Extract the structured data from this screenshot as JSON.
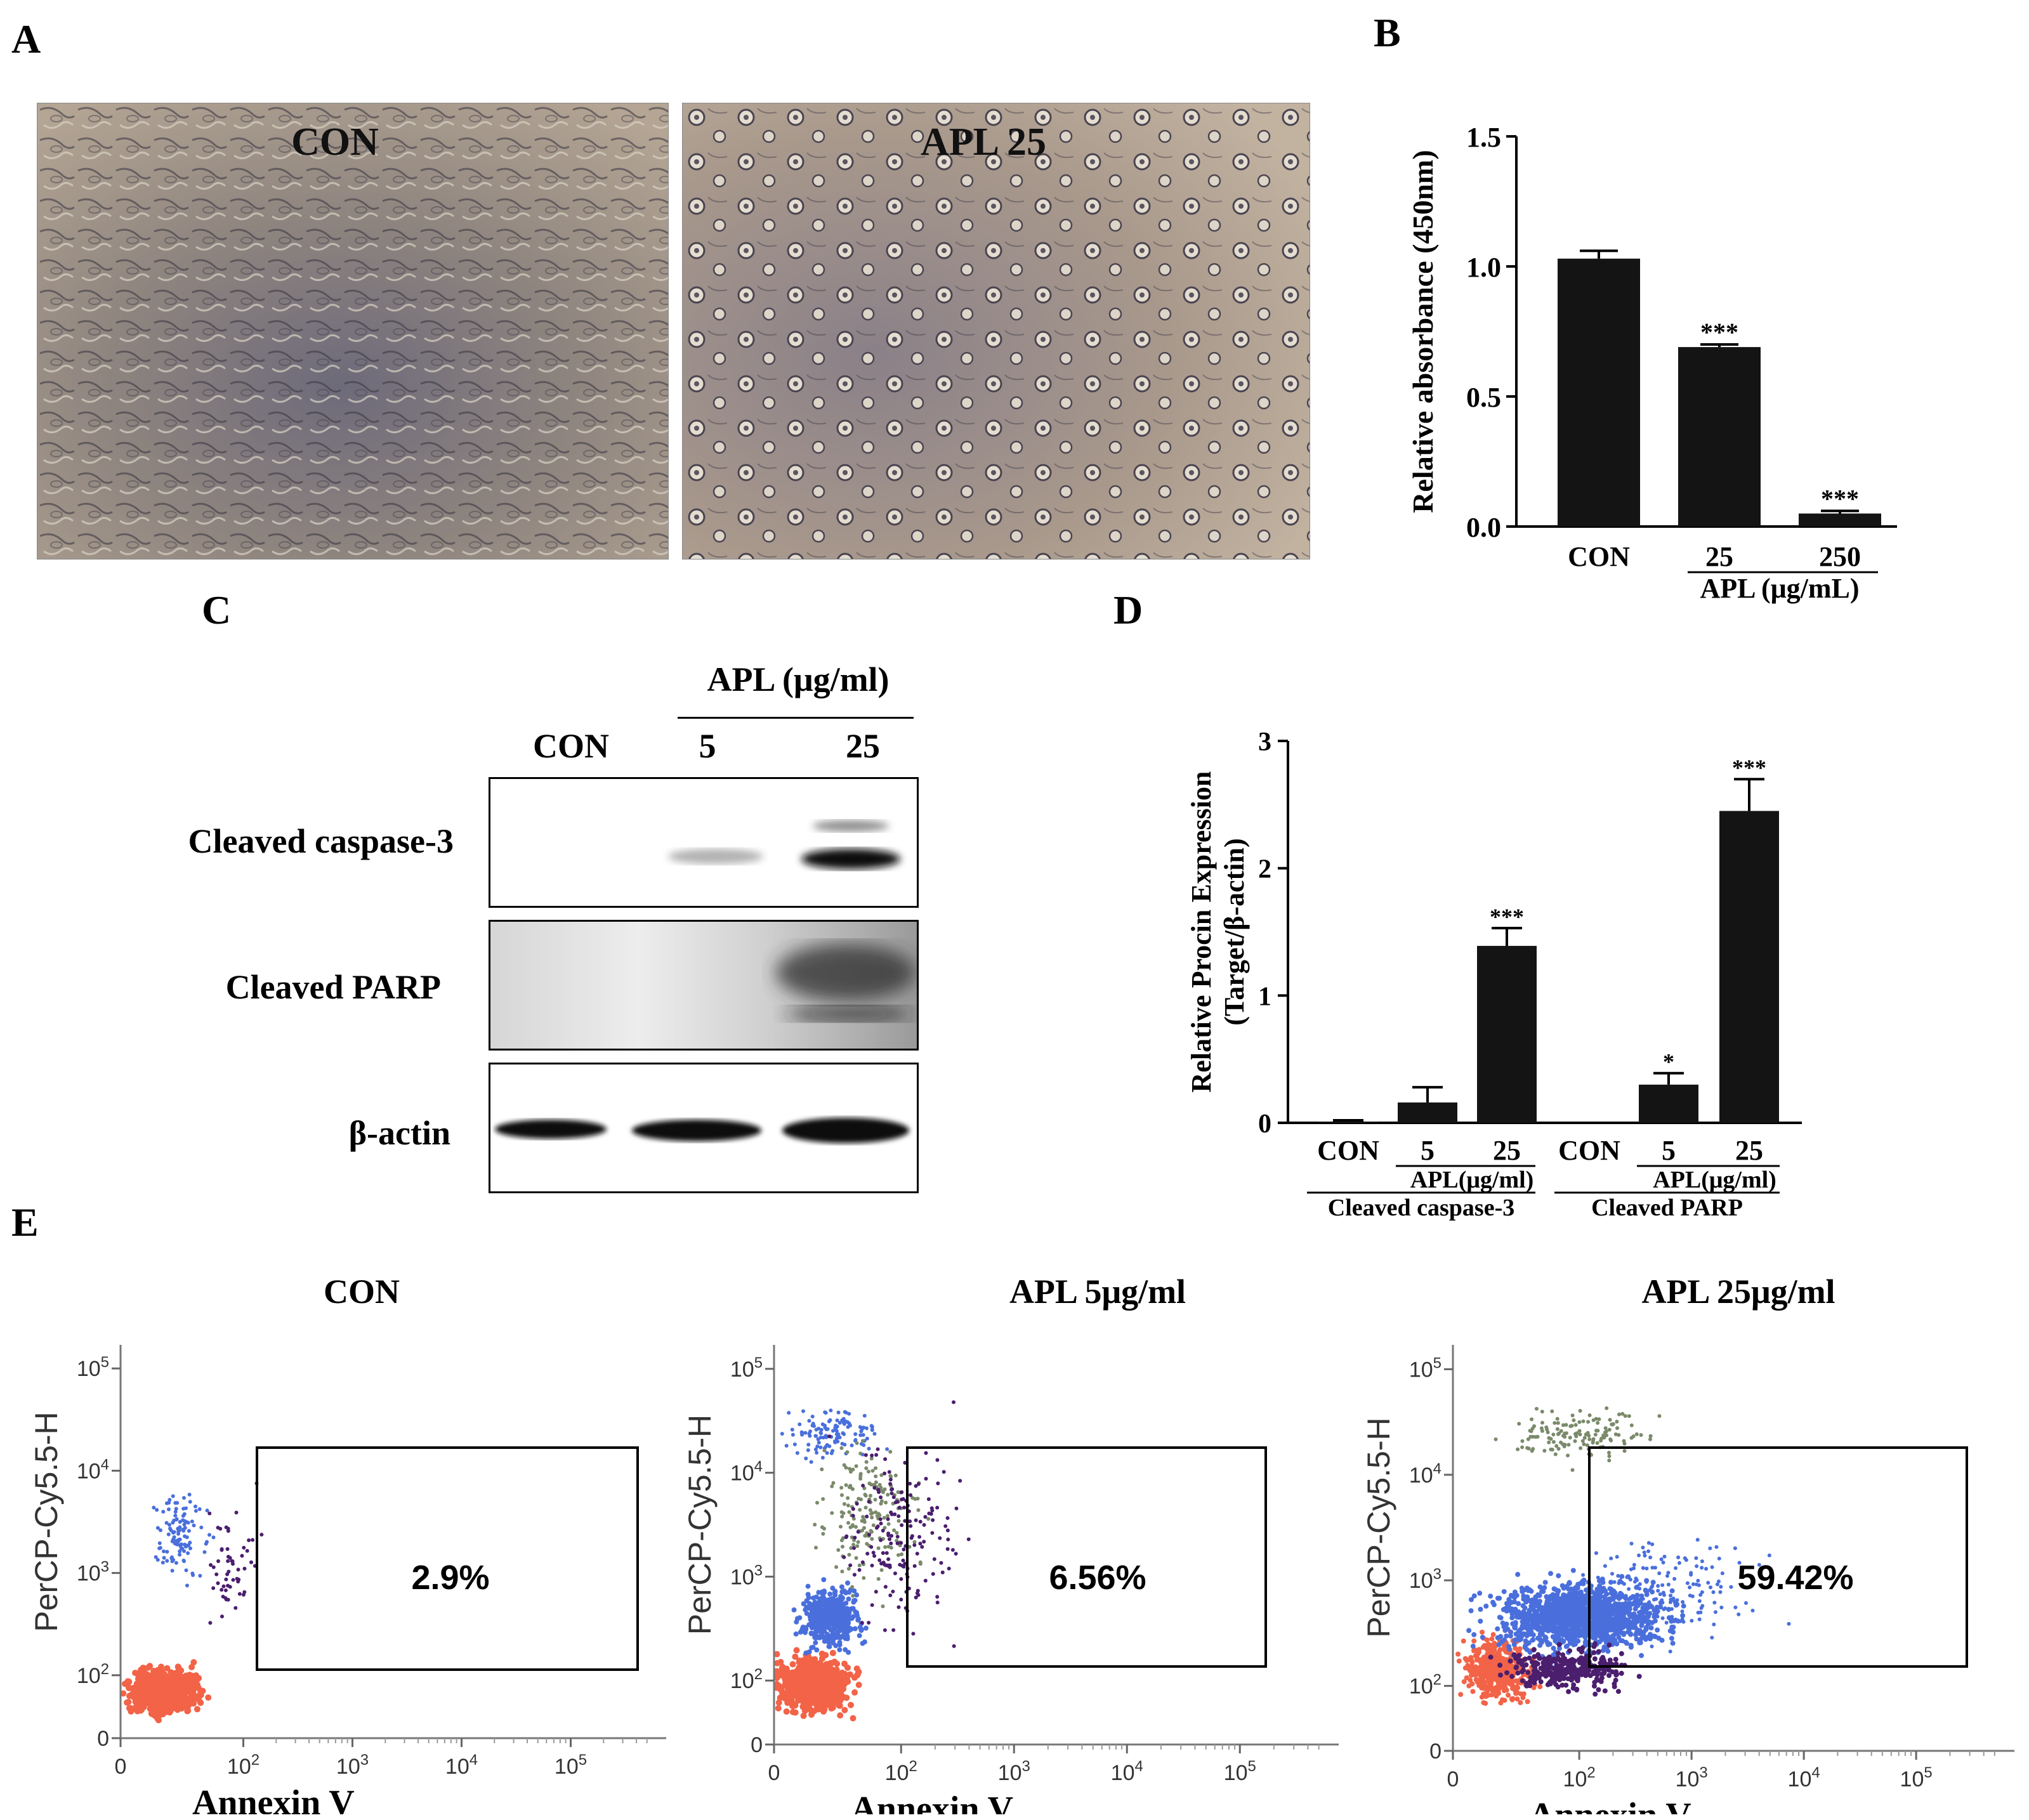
{
  "panel_labels": {
    "a": "A",
    "b": "B",
    "c": "C",
    "d": "D",
    "e": "E"
  },
  "panel_a": {
    "images": [
      {
        "label": "CON"
      },
      {
        "label": "APL 25"
      }
    ]
  },
  "chart_data": [
    {
      "panel": "B",
      "type": "bar",
      "categories": [
        "CON",
        "25",
        "250"
      ],
      "values": [
        1.03,
        0.69,
        0.05
      ],
      "errors": [
        0.03,
        0.01,
        0.01
      ],
      "significance": [
        "",
        "***",
        "***"
      ],
      "ylabel": "Relative absorbance (450nm)",
      "xgroup_label": "APL (μg/mL)",
      "ylim": [
        0,
        1.5
      ],
      "yticks": [
        "0.0",
        "0.5",
        "1.0",
        "1.5"
      ],
      "ytick_values": [
        0,
        0.5,
        1.0,
        1.5
      ]
    },
    {
      "panel": "D",
      "type": "bar",
      "categories": [
        "CON",
        "5",
        "25",
        "CON",
        "5",
        "25"
      ],
      "values": [
        0.01,
        0.16,
        1.39,
        0.0,
        0.3,
        2.45
      ],
      "errors": [
        0.01,
        0.12,
        0.14,
        0.0,
        0.09,
        0.25
      ],
      "significance": [
        "",
        "",
        "***",
        "",
        "*",
        "***"
      ],
      "ylabel_line1": "Relative Procin Expression",
      "ylabel_line2": "(Target/β-actin)",
      "subgroup_label": "APL(μg/ml)",
      "groups": [
        "Cleaved caspase-3",
        "Cleaved PARP"
      ],
      "ylim": [
        0,
        3
      ],
      "yticks": [
        "0",
        "1",
        "2",
        "3"
      ],
      "ytick_values": [
        0,
        1,
        2,
        3
      ]
    }
  ],
  "panel_c": {
    "header": "APL (μg/ml)",
    "lanes": [
      "CON",
      "5",
      "25"
    ],
    "rows": [
      {
        "label": "Cleaved caspase-3"
      },
      {
        "label": "Cleaved PARP"
      },
      {
        "label": "β-actin"
      }
    ]
  },
  "panel_e": {
    "x_label": "Annexin V",
    "y_label": "PerCP-Cy5.5-H",
    "ticks": {
      "zero": "0",
      "base": "10",
      "exps": [
        "2",
        "3",
        "4",
        "5"
      ]
    },
    "plots": [
      {
        "title": "CON",
        "percent": "2.9%"
      },
      {
        "title": "APL 5μg/ml",
        "percent": "6.56%"
      },
      {
        "title": "APL 25μg/ml",
        "percent": "59.42%"
      }
    ]
  },
  "colors": {
    "bar": "#141414",
    "live": "#f26347",
    "early": "#4a6fdc",
    "late": "#4b1e6e",
    "necrotic": "#7a8a6a"
  }
}
